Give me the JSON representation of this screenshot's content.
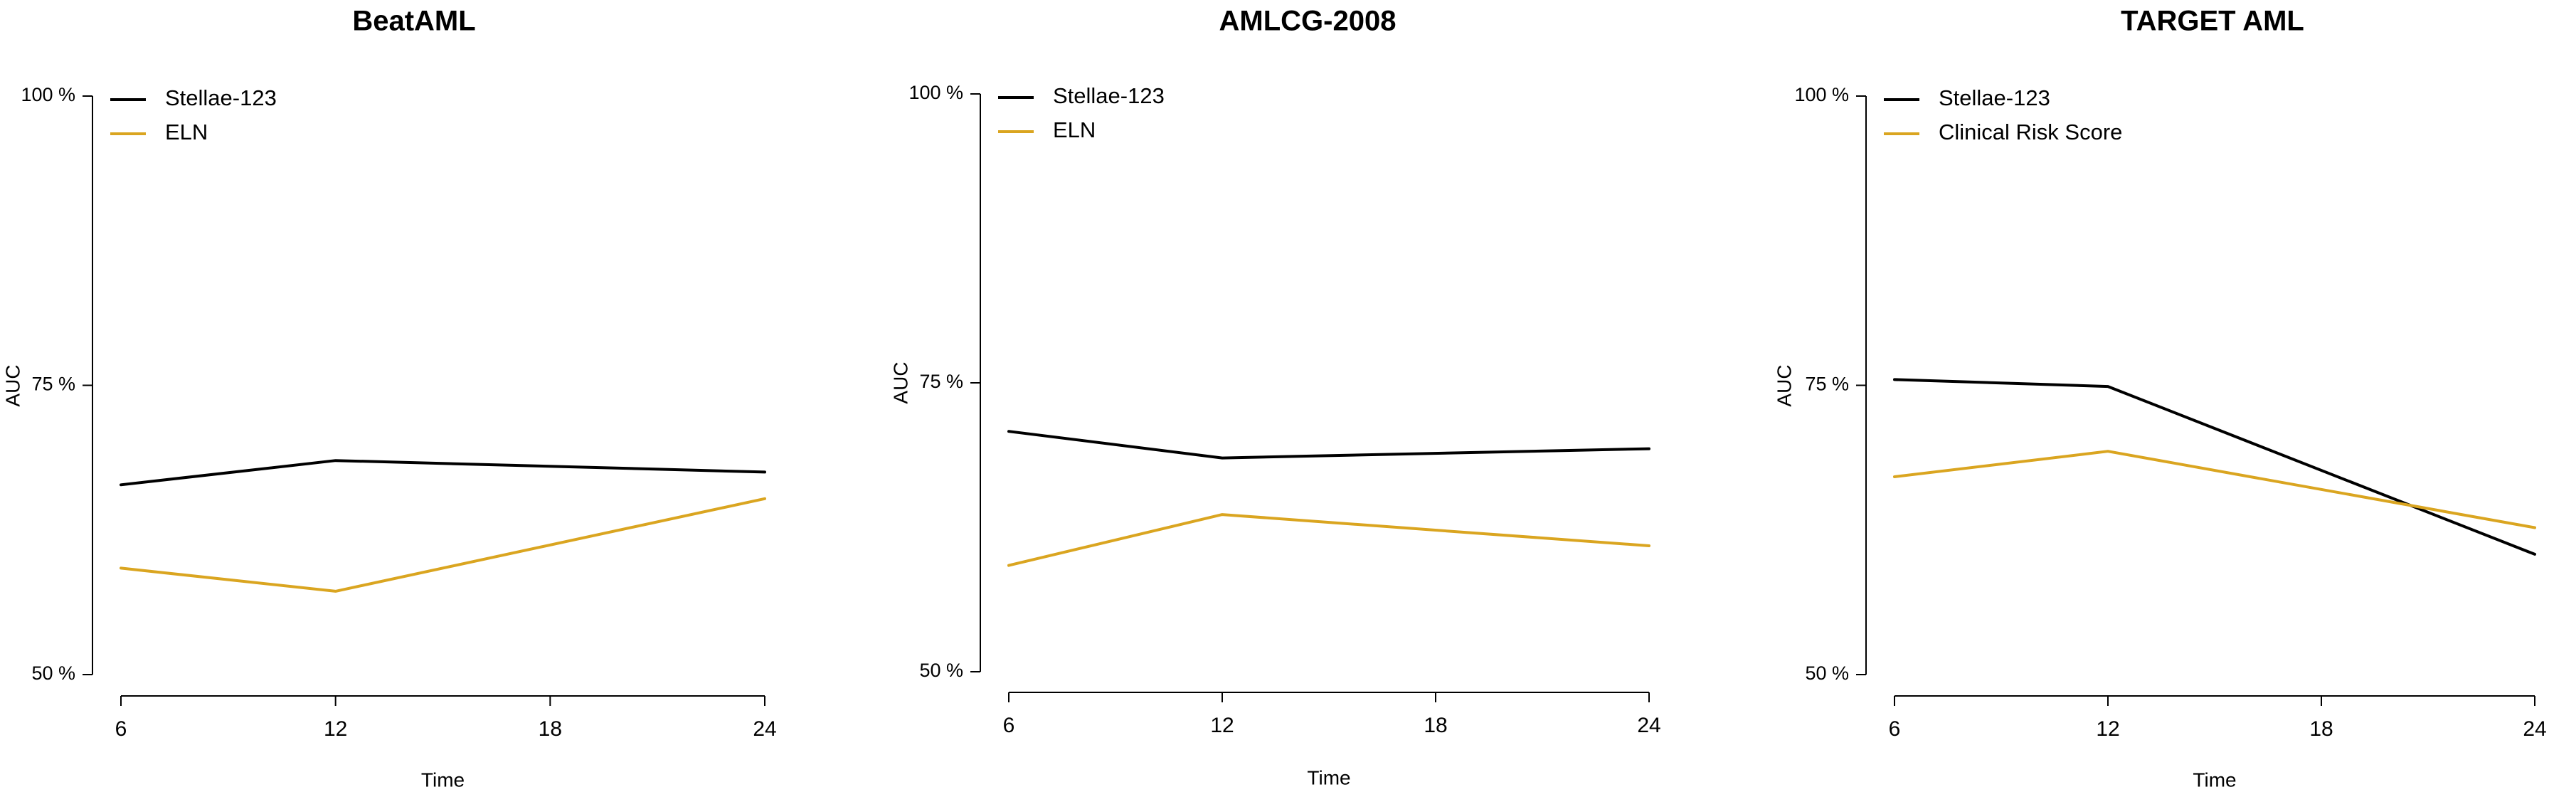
{
  "chart_data": [
    {
      "type": "line",
      "title": "BeatAML",
      "xlabel": "Time",
      "ylabel": "AUC",
      "x": [
        6,
        12,
        18,
        24
      ],
      "x_ticks": [
        "6",
        "12",
        "18",
        "24"
      ],
      "y_ticks": [
        {
          "value": 0.5,
          "label": "50 %"
        },
        {
          "value": 0.75,
          "label": "75 %"
        },
        {
          "value": 1.0,
          "label": "100 %"
        }
      ],
      "xlim": [
        6,
        24
      ],
      "ylim": [
        0.5,
        1.0
      ],
      "grid": false,
      "legend_position": "top-left",
      "series": [
        {
          "name": "Stellae-123",
          "color": "#000000",
          "x": [
            6,
            12,
            24
          ],
          "values": [
            0.664,
            0.685,
            0.675
          ]
        },
        {
          "name": "ELN",
          "color": "#DAA520",
          "x": [
            6,
            12,
            24
          ],
          "values": [
            0.592,
            0.572,
            0.652
          ]
        }
      ]
    },
    {
      "type": "line",
      "title": "AMLCG-2008",
      "xlabel": "Time",
      "ylabel": "AUC",
      "x": [
        6,
        12,
        18,
        24
      ],
      "x_ticks": [
        "6",
        "12",
        "18",
        "24"
      ],
      "y_ticks": [
        {
          "value": 0.5,
          "label": "50 %"
        },
        {
          "value": 0.75,
          "label": "75 %"
        },
        {
          "value": 1.0,
          "label": "100 %"
        }
      ],
      "xlim": [
        6,
        24
      ],
      "ylim": [
        0.5,
        1.0
      ],
      "grid": false,
      "legend_position": "top-left",
      "series": [
        {
          "name": "Stellae-123",
          "color": "#000000",
          "x": [
            6,
            12,
            24
          ],
          "values": [
            0.708,
            0.685,
            0.693
          ]
        },
        {
          "name": "ELN",
          "color": "#DAA520",
          "x": [
            6,
            12,
            24
          ],
          "values": [
            0.592,
            0.636,
            0.609
          ]
        }
      ]
    },
    {
      "type": "line",
      "title": "TARGET AML",
      "xlabel": "Time",
      "ylabel": "AUC",
      "x": [
        6,
        12,
        18,
        24
      ],
      "x_ticks": [
        "6",
        "12",
        "18",
        "24"
      ],
      "y_ticks": [
        {
          "value": 0.5,
          "label": "50 %"
        },
        {
          "value": 0.75,
          "label": "75 %"
        },
        {
          "value": 1.0,
          "label": "100 %"
        }
      ],
      "xlim": [
        6,
        24
      ],
      "ylim": [
        0.5,
        1.0
      ],
      "grid": false,
      "legend_position": "top-left",
      "series": [
        {
          "name": "Stellae-123",
          "color": "#000000",
          "x": [
            6,
            12,
            24
          ],
          "values": [
            0.755,
            0.749,
            0.604
          ]
        },
        {
          "name": "Clinical Risk Score",
          "color": "#DAA520",
          "x": [
            6,
            12,
            24
          ],
          "values": [
            0.671,
            0.693,
            0.627
          ]
        }
      ]
    }
  ]
}
